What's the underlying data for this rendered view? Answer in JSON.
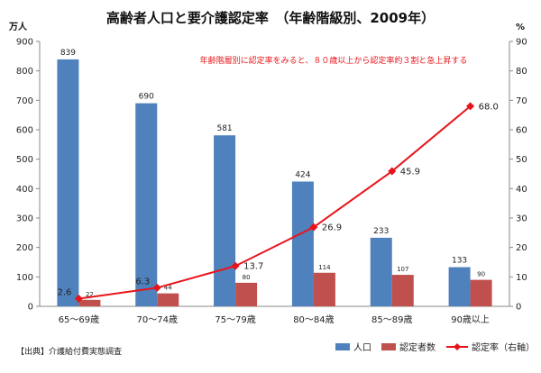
{
  "chart_data": {
    "type": "bar",
    "title": "高齢者人口と要介護認定率　（年齢階級別、2009年）",
    "annotation": "年齢階層別に認定率をみると、８０歳以上から認定率約３割と急上昇する",
    "y_left_unit": "万人",
    "y_right_unit": "%",
    "ylim_left": [
      0,
      900
    ],
    "y_left_ticks": [
      "0",
      "100",
      "200",
      "300",
      "400",
      "500",
      "600",
      "700",
      "800",
      "900"
    ],
    "ylim_right": [
      0,
      90
    ],
    "y_right_ticks": [
      "0",
      "10",
      "20",
      "30",
      "40",
      "50",
      "60",
      "70",
      "80",
      "90"
    ],
    "categories": [
      "65～69歳",
      "70～74歳",
      "75～79歳",
      "80～84歳",
      "85～89歳",
      "90歳以上"
    ],
    "series": [
      {
        "name": "人口",
        "kind": "bar",
        "axis": "left",
        "color": "#4f81bd",
        "values": [
          839,
          690,
          581,
          424,
          233,
          133
        ],
        "labels": [
          "839",
          "690",
          "581",
          "424",
          "233",
          "133"
        ]
      },
      {
        "name": "認定者数",
        "kind": "bar",
        "axis": "left",
        "color": "#c0504d",
        "values": [
          22,
          44,
          80,
          114,
          107,
          90
        ],
        "labels": [
          "22",
          "44",
          "80",
          "114",
          "107",
          "90"
        ]
      },
      {
        "name": "認定率（右軸）",
        "kind": "line",
        "axis": "right",
        "color": "#e8141a",
        "values": [
          2.6,
          6.3,
          13.7,
          26.9,
          45.9,
          68.0
        ],
        "labels": [
          "2.6",
          "6.3",
          "13.7",
          "26.9",
          "45.9",
          "68.0"
        ]
      }
    ],
    "legend_position": "bottom-right",
    "grid": false
  },
  "source_note": "【出典】介護給付費実態調査"
}
